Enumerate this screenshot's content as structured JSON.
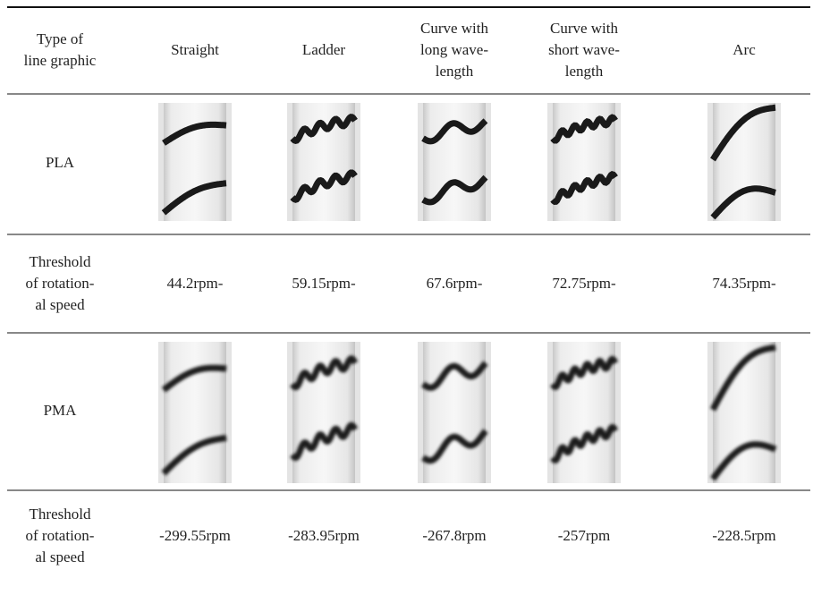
{
  "table": {
    "header": [
      [
        "Type of",
        "line graphic"
      ],
      [
        "Straight"
      ],
      [
        "Ladder"
      ],
      [
        "Curve with",
        "long wave-",
        "length"
      ],
      [
        "Curve with",
        "short wave-",
        "length"
      ],
      [
        "Arc"
      ]
    ],
    "rows": [
      {
        "label": [
          "PLA"
        ]
      },
      {
        "label": [
          "Threshold",
          "of rotation-",
          "al speed"
        ],
        "cells": [
          "44.2rpm-",
          "59.15rpm-",
          "67.6rpm-",
          "72.75rpm-",
          "74.35rpm-"
        ]
      },
      {
        "label": [
          "PMA"
        ]
      },
      {
        "label": [
          "Threshold",
          "of rotation-",
          "al speed"
        ],
        "cells": [
          "-299.55rpm",
          "-283.95rpm",
          "-267.8rpm",
          "-257rpm",
          "-228.5rpm"
        ]
      }
    ]
  }
}
